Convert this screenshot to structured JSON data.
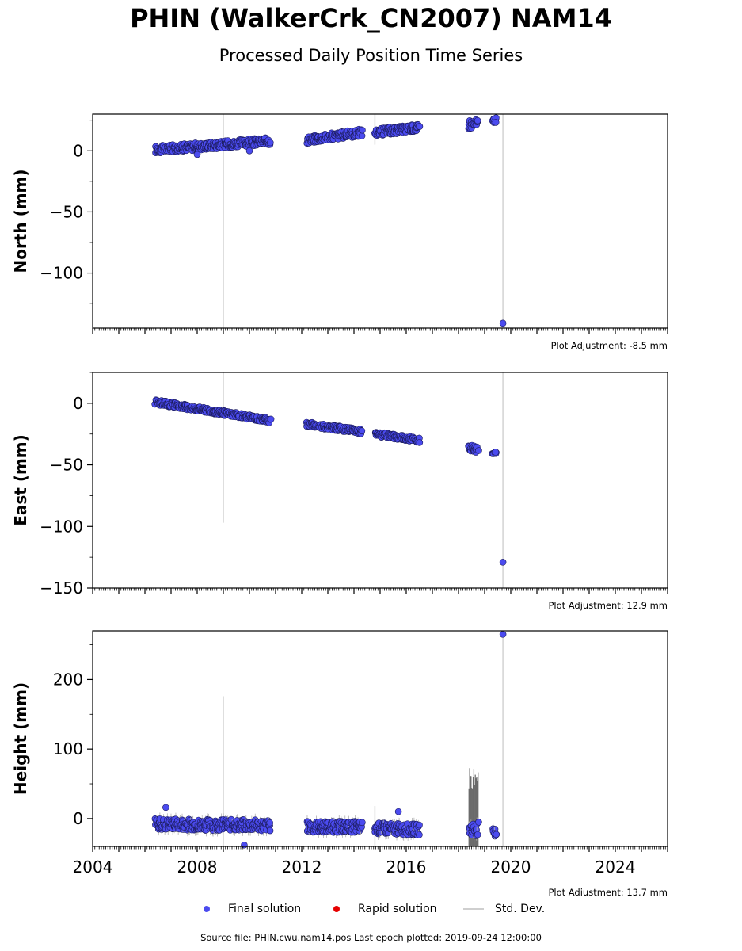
{
  "header": {
    "title": "PHIN (WalkerCrk_CN2007) NAM14",
    "subtitle": "Processed Daily Position Time Series"
  },
  "legend": {
    "final": "Final solution",
    "rapid": "Rapid solution",
    "stddev": "Std. Dev."
  },
  "footer": {
    "source": "Source file: PHIN.cwu.nam14.pos  Last epoch plotted: 2019-09-24 12:00:00"
  },
  "colors": {
    "final": "#4b4bef",
    "rapid": "#e60000",
    "stddev": "#d3d3d3",
    "stddev_dark": "#6b6b6b"
  },
  "chart_data": [
    {
      "type": "scatter",
      "ylabel": "North (mm)",
      "xlim": [
        2004,
        2026
      ],
      "ylim": [
        -145,
        30
      ],
      "yticks": [
        0,
        -50,
        -100
      ],
      "ytick_labels": [
        "0",
        "−50",
        "−100"
      ],
      "xticks": [
        2004,
        2008,
        2012,
        2016,
        2020,
        2024
      ],
      "xtick_labels": [],
      "adjustment": "Plot Adjustment: -8.5 mm",
      "segments": [
        {
          "x": [
            2006.4,
            2010.8
          ],
          "y": [
            1,
            8
          ],
          "spread": 3
        },
        {
          "x": [
            2012.2,
            2014.3
          ],
          "y": [
            9,
            15
          ],
          "spread": 3
        },
        {
          "x": [
            2014.8,
            2016.5
          ],
          "y": [
            15,
            19
          ],
          "spread": 3
        },
        {
          "x": [
            2018.4,
            2018.75
          ],
          "y": [
            22,
            22
          ],
          "spread": 4
        },
        {
          "x": [
            2019.3,
            2019.45
          ],
          "y": [
            25,
            25
          ],
          "spread": 2
        }
      ],
      "outliers": [
        {
          "x": 2008.0,
          "y": -3
        },
        {
          "x": 2010.0,
          "y": 0
        },
        {
          "x": 2019.7,
          "y": -141
        }
      ],
      "stddev_lines": [
        {
          "x": 2009.0,
          "y": [
            -145,
            30
          ]
        },
        {
          "x": 2019.7,
          "y": [
            -145,
            30
          ]
        },
        {
          "x": 2014.8,
          "y": [
            5,
            30
          ]
        }
      ]
    },
    {
      "type": "scatter",
      "ylabel": "East (mm)",
      "xlim": [
        2004,
        2026
      ],
      "ylim": [
        -150,
        25
      ],
      "yticks": [
        0,
        -50,
        -100,
        -150
      ],
      "ytick_labels": [
        "0",
        "−50",
        "−100",
        "−150"
      ],
      "xticks": [
        2004,
        2008,
        2012,
        2016,
        2020,
        2024
      ],
      "xtick_labels": [],
      "adjustment": "Plot Adjustment: 12.9 mm",
      "segments": [
        {
          "x": [
            2006.4,
            2010.8
          ],
          "y": [
            1,
            -14
          ],
          "spread": 2
        },
        {
          "x": [
            2012.2,
            2014.3
          ],
          "y": [
            -17,
            -23
          ],
          "spread": 2
        },
        {
          "x": [
            2014.8,
            2016.5
          ],
          "y": [
            -25,
            -30
          ],
          "spread": 2
        },
        {
          "x": [
            2018.4,
            2018.75
          ],
          "y": [
            -36,
            -37
          ],
          "spread": 3
        },
        {
          "x": [
            2019.3,
            2019.45
          ],
          "y": [
            -40,
            -40
          ],
          "spread": 1
        }
      ],
      "outliers": [
        {
          "x": 2019.7,
          "y": -129
        }
      ],
      "stddev_lines": [
        {
          "x": 2009.0,
          "y": [
            -97,
            25
          ]
        },
        {
          "x": 2019.7,
          "y": [
            -150,
            25
          ]
        }
      ]
    },
    {
      "type": "scatter",
      "ylabel": "Height (mm)",
      "xlim": [
        2004,
        2026
      ],
      "ylim": [
        -40,
        270
      ],
      "yticks": [
        0,
        100,
        200
      ],
      "ytick_labels": [
        "0",
        "100",
        "200"
      ],
      "xticks": [
        2004,
        2008,
        2012,
        2016,
        2020,
        2024
      ],
      "xtick_labels": [
        "2004",
        "2008",
        "2012",
        "2016",
        "2020",
        "2024"
      ],
      "adjustment": "Plot Adjustment: 13.7 mm",
      "segments": [
        {
          "x": [
            2006.4,
            2010.8
          ],
          "y": [
            -8,
            -10
          ],
          "spread": 8
        },
        {
          "x": [
            2012.2,
            2014.3
          ],
          "y": [
            -12,
            -12
          ],
          "spread": 8
        },
        {
          "x": [
            2014.8,
            2016.5
          ],
          "y": [
            -14,
            -16
          ],
          "spread": 8
        },
        {
          "x": [
            2018.4,
            2018.75
          ],
          "y": [
            -15,
            -15
          ],
          "spread": 10
        },
        {
          "x": [
            2019.3,
            2019.45
          ],
          "y": [
            -20,
            -20
          ],
          "spread": 6
        }
      ],
      "outliers": [
        {
          "x": 2006.8,
          "y": 16
        },
        {
          "x": 2015.7,
          "y": 10
        },
        {
          "x": 2009.8,
          "y": -38
        },
        {
          "x": 2019.7,
          "y": 265
        }
      ],
      "stddev_lines": [
        {
          "x": 2009.0,
          "y": [
            -40,
            176
          ]
        },
        {
          "x": 2019.7,
          "y": [
            -40,
            270
          ]
        },
        {
          "x": 2014.8,
          "y": [
            -40,
            18
          ]
        }
      ],
      "stddev_dark_bands": [
        {
          "x": [
            2018.4,
            2018.75
          ],
          "y": [
            -40,
            80
          ]
        }
      ]
    }
  ]
}
